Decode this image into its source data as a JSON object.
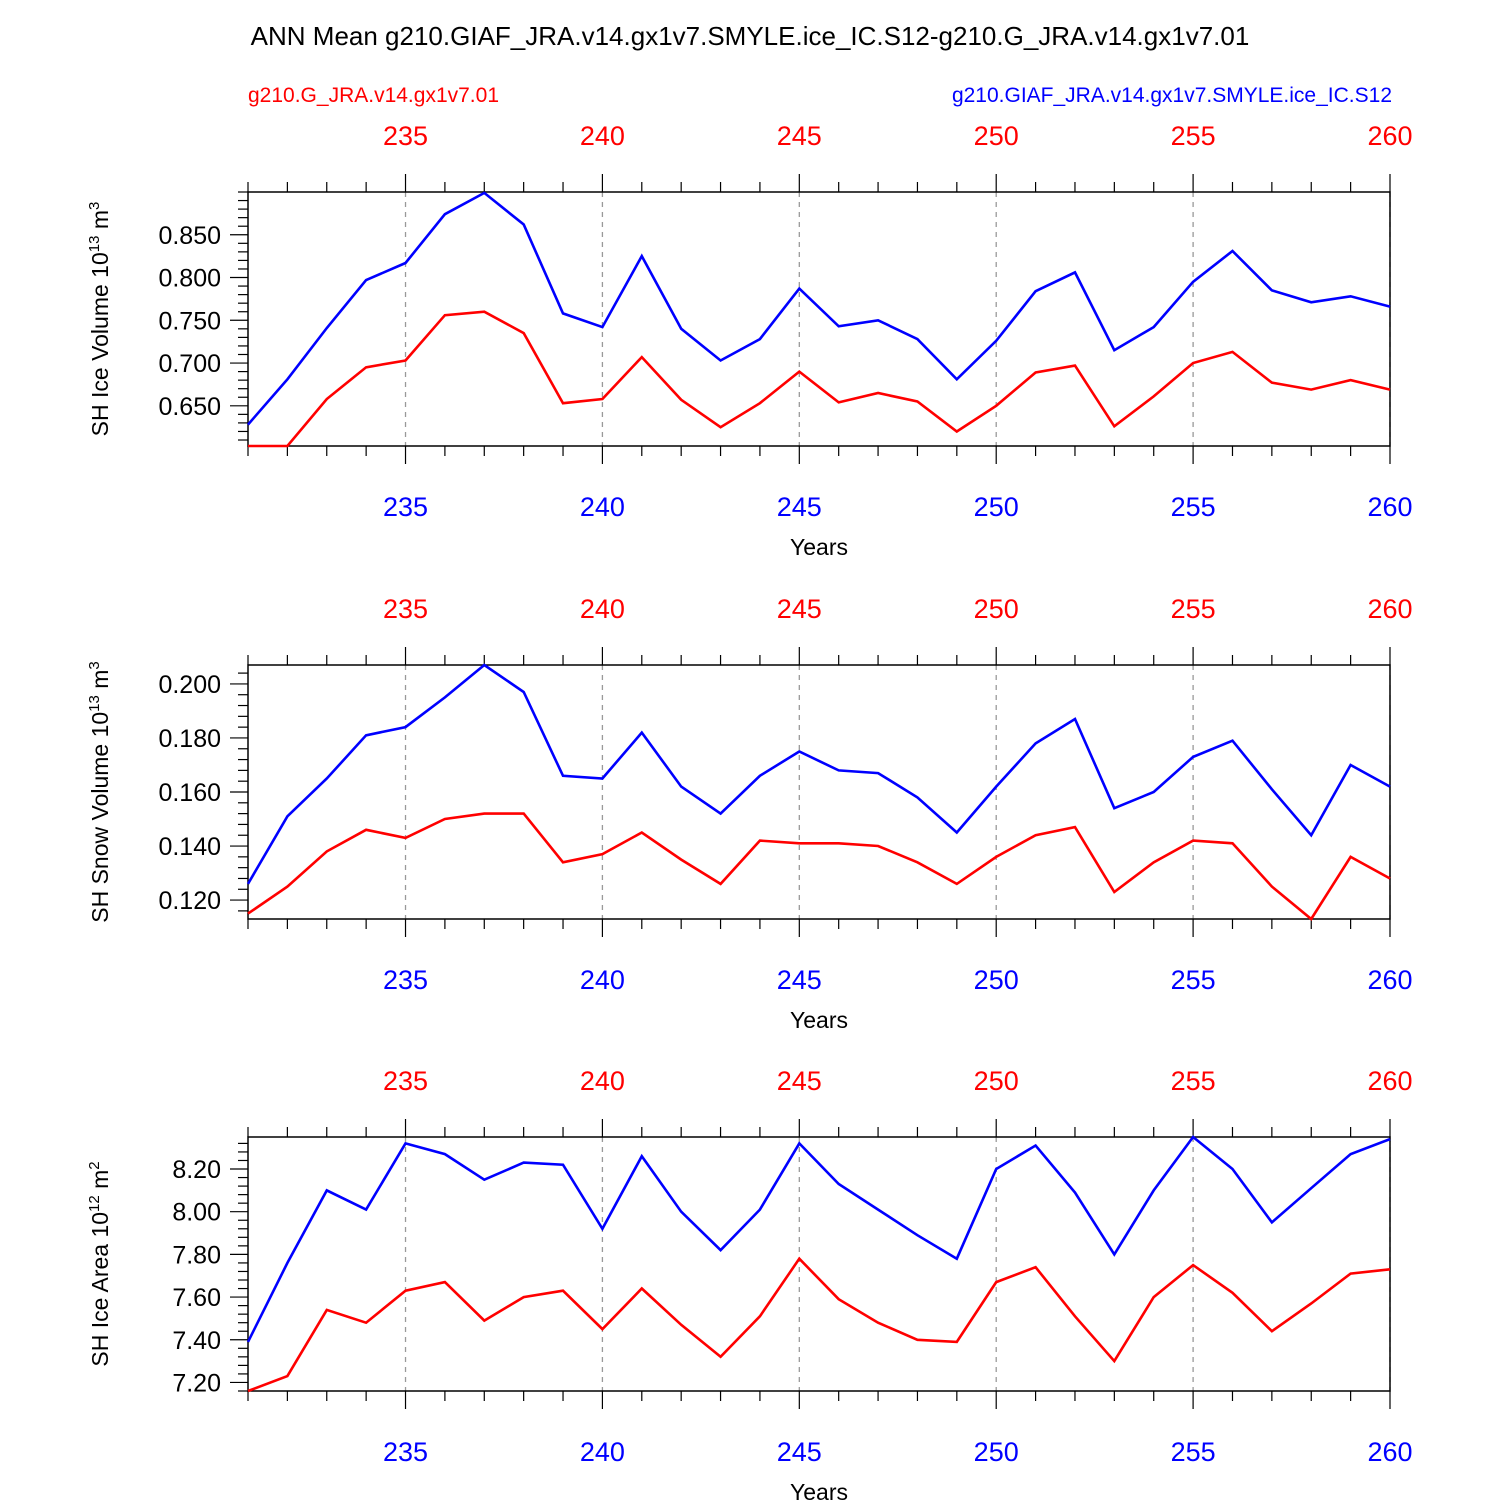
{
  "title": "ANN Mean g210.GIAF_JRA.v14.gx1v7.SMYLE.ice_IC.S12-g210.G_JRA.v14.gx1v7.01",
  "legend": {
    "red_label": "g210.G_JRA.v14.gx1v7.01",
    "blue_label": "g210.GIAF_JRA.v14.gx1v7.SMYLE.ice_IC.S12"
  },
  "colors": {
    "red": "#ff0000",
    "blue": "#0000ff",
    "grid": "#999999",
    "axis": "#000000"
  },
  "chart_data": [
    {
      "type": "line",
      "title": "",
      "ylabel": {
        "prefix": "SH Ice Volume 10",
        "exp": "13",
        "unit": " m",
        "unit_exp": "3"
      },
      "xlabel": "Years",
      "xlim": [
        231,
        260
      ],
      "ylim": [
        0.603,
        0.9
      ],
      "yticks": [
        "0.650",
        "0.700",
        "0.750",
        "0.800",
        "0.850"
      ],
      "xticks": [
        "235",
        "240",
        "245",
        "250",
        "255",
        "260"
      ],
      "grid": "vertical dashed at major x ticks",
      "x": [
        231,
        232,
        233,
        234,
        235,
        236,
        237,
        238,
        239,
        240,
        241,
        242,
        243,
        244,
        245,
        246,
        247,
        248,
        249,
        250,
        251,
        252,
        253,
        254,
        255,
        256,
        257,
        258,
        259,
        260
      ],
      "series": [
        {
          "name": "g210.GIAF_JRA.v14.gx1v7.SMYLE.ice_IC.S12",
          "color": "blue",
          "values": [
            0.628,
            0.681,
            0.741,
            0.797,
            0.817,
            0.874,
            0.899,
            0.862,
            0.758,
            0.742,
            0.825,
            0.74,
            0.703,
            0.728,
            0.787,
            0.743,
            0.75,
            0.728,
            0.681,
            0.726,
            0.784,
            0.806,
            0.715,
            0.742,
            0.795,
            0.831,
            0.785,
            0.771,
            0.778,
            0.766
          ]
        },
        {
          "name": "g210.G_JRA.v14.gx1v7.01",
          "color": "red",
          "values": [
            0.603,
            0.603,
            0.658,
            0.695,
            0.703,
            0.756,
            0.76,
            0.735,
            0.653,
            0.658,
            0.707,
            0.657,
            0.625,
            0.653,
            0.69,
            0.654,
            0.665,
            0.655,
            0.62,
            0.65,
            0.689,
            0.697,
            0.626,
            0.661,
            0.7,
            0.713,
            0.677,
            0.669,
            0.68,
            0.669
          ]
        }
      ]
    },
    {
      "type": "line",
      "title": "",
      "ylabel": {
        "prefix": "SH Snow Volume 10",
        "exp": "13",
        "unit": " m",
        "unit_exp": "3"
      },
      "xlabel": "Years",
      "xlim": [
        231,
        260
      ],
      "ylim": [
        0.113,
        0.207
      ],
      "yticks": [
        "0.120",
        "0.140",
        "0.160",
        "0.180",
        "0.200"
      ],
      "xticks": [
        "235",
        "240",
        "245",
        "250",
        "255",
        "260"
      ],
      "grid": "vertical dashed at major x ticks",
      "x": [
        231,
        232,
        233,
        234,
        235,
        236,
        237,
        238,
        239,
        240,
        241,
        242,
        243,
        244,
        245,
        246,
        247,
        248,
        249,
        250,
        251,
        252,
        253,
        254,
        255,
        256,
        257,
        258,
        259,
        260
      ],
      "series": [
        {
          "name": "g210.GIAF_JRA.v14.gx1v7.SMYLE.ice_IC.S12",
          "color": "blue",
          "values": [
            0.126,
            0.151,
            0.165,
            0.181,
            0.184,
            0.195,
            0.207,
            0.197,
            0.166,
            0.165,
            0.182,
            0.162,
            0.152,
            0.166,
            0.175,
            0.168,
            0.167,
            0.158,
            0.145,
            0.162,
            0.178,
            0.187,
            0.154,
            0.16,
            0.173,
            0.179,
            0.161,
            0.144,
            0.17,
            0.162
          ]
        },
        {
          "name": "g210.G_JRA.v14.gx1v7.01",
          "color": "red",
          "values": [
            0.115,
            0.125,
            0.138,
            0.146,
            0.143,
            0.15,
            0.152,
            0.152,
            0.134,
            0.137,
            0.145,
            0.135,
            0.126,
            0.142,
            0.141,
            0.141,
            0.14,
            0.134,
            0.126,
            0.136,
            0.144,
            0.147,
            0.123,
            0.134,
            0.142,
            0.141,
            0.125,
            0.113,
            0.136,
            0.128
          ]
        }
      ]
    },
    {
      "type": "line",
      "title": "",
      "ylabel": {
        "prefix": "SH Ice Area 10",
        "exp": "12",
        "unit": " m",
        "unit_exp": "2"
      },
      "xlabel": "Years",
      "xlim": [
        231,
        260
      ],
      "ylim": [
        7.16,
        8.35
      ],
      "yticks": [
        "7.20",
        "7.40",
        "7.60",
        "7.80",
        "8.00",
        "8.20"
      ],
      "xticks": [
        "235",
        "240",
        "245",
        "250",
        "255",
        "260"
      ],
      "grid": "vertical dashed at major x ticks",
      "x": [
        231,
        232,
        233,
        234,
        235,
        236,
        237,
        238,
        239,
        240,
        241,
        242,
        243,
        244,
        245,
        246,
        247,
        248,
        249,
        250,
        251,
        252,
        253,
        254,
        255,
        256,
        257,
        258,
        259,
        260
      ],
      "series": [
        {
          "name": "g210.GIAF_JRA.v14.gx1v7.SMYLE.ice_IC.S12",
          "color": "blue",
          "values": [
            7.39,
            7.76,
            8.1,
            8.01,
            8.32,
            8.27,
            8.15,
            8.23,
            8.22,
            7.92,
            8.26,
            8.0,
            7.82,
            8.01,
            8.32,
            8.13,
            8.01,
            7.89,
            7.78,
            8.2,
            8.31,
            8.09,
            7.8,
            8.1,
            8.35,
            8.2,
            7.95,
            8.11,
            8.27,
            8.34
          ]
        },
        {
          "name": "g210.G_JRA.v14.gx1v7.01",
          "color": "red",
          "values": [
            7.16,
            7.23,
            7.54,
            7.48,
            7.63,
            7.67,
            7.49,
            7.6,
            7.63,
            7.45,
            7.64,
            7.47,
            7.32,
            7.51,
            7.78,
            7.59,
            7.48,
            7.4,
            7.39,
            7.67,
            7.74,
            7.51,
            7.3,
            7.6,
            7.75,
            7.62,
            7.44,
            7.57,
            7.71,
            7.73
          ]
        }
      ]
    }
  ]
}
